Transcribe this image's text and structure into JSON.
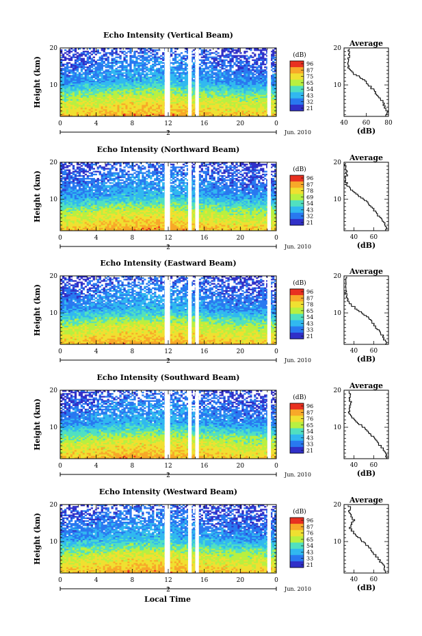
{
  "chart_data": [
    {
      "type": "heatmap",
      "title": "Echo Intensity (Vertical Beam)",
      "ylabel": "Height (km)",
      "ylim": [
        1.5,
        20
      ],
      "y_ticks": [
        "20",
        "10"
      ],
      "x_ticks": [
        "0",
        "4",
        "8",
        "12",
        "16",
        "20",
        "0"
      ],
      "xlim": [
        0,
        24
      ],
      "date_marker": "2",
      "date_label": "Jun. 2010",
      "colorbar": {
        "unit": "(dB)",
        "ticks": [
          "96",
          "87",
          "75",
          "65",
          "54",
          "43",
          "32",
          "21"
        ]
      },
      "gaps_hours": [
        [
          11.6,
          12.2
        ],
        [
          14.2,
          14.6
        ],
        [
          15.0,
          15.4
        ],
        [
          23.0,
          23.4
        ]
      ],
      "average_profile": {
        "title": "Average",
        "xlabel": "(dB)",
        "x_ticks": [
          "40",
          "60",
          "80"
        ],
        "xlim": [
          40,
          80
        ],
        "y_ticks": [
          "20",
          "10"
        ],
        "heights_km": [
          2,
          3,
          4,
          5,
          6,
          7,
          8,
          9,
          10,
          11,
          12,
          13,
          14,
          15,
          16,
          17,
          18,
          19,
          20
        ],
        "values_db": [
          78,
          79,
          77,
          76,
          74,
          71,
          68,
          66,
          63,
          60,
          55,
          50,
          46,
          44,
          43,
          44,
          45,
          44,
          44
        ]
      }
    },
    {
      "type": "heatmap",
      "title": "Echo Intensity (Northward Beam)",
      "ylabel": "Height (km)",
      "ylim": [
        1.5,
        20
      ],
      "y_ticks": [
        "20",
        "10"
      ],
      "x_ticks": [
        "0",
        "4",
        "8",
        "12",
        "16",
        "20",
        "0"
      ],
      "xlim": [
        0,
        24
      ],
      "date_marker": "2",
      "date_label": "Jun. 2010",
      "colorbar": {
        "unit": "(dB)",
        "ticks": [
          "96",
          "87",
          "78",
          "69",
          "54",
          "43",
          "32",
          "21"
        ]
      },
      "gaps_hours": [
        [
          11.6,
          12.2
        ],
        [
          14.2,
          14.6
        ],
        [
          15.0,
          15.4
        ],
        [
          23.0,
          23.4
        ]
      ],
      "average_profile": {
        "title": "Average",
        "xlabel": "(dB)",
        "x_ticks": [
          "40",
          "60"
        ],
        "xlim": [
          30,
          75
        ],
        "y_ticks": [
          "20",
          "10"
        ],
        "heights_km": [
          2,
          3,
          4,
          5,
          6,
          7,
          8,
          9,
          10,
          11,
          12,
          13,
          14,
          15,
          16,
          17,
          18,
          19,
          20
        ],
        "values_db": [
          73,
          72,
          70,
          67,
          64,
          61,
          58,
          55,
          50,
          45,
          40,
          36,
          33,
          32,
          32,
          33,
          32,
          31,
          32
        ]
      }
    },
    {
      "type": "heatmap",
      "title": "Echo Intensity (Eastward Beam)",
      "ylabel": "Height (km)",
      "ylim": [
        1.5,
        20
      ],
      "y_ticks": [
        "20",
        "10"
      ],
      "x_ticks": [
        "0",
        "4",
        "8",
        "12",
        "16",
        "20",
        "0"
      ],
      "xlim": [
        0,
        24
      ],
      "date_marker": "2",
      "date_label": "Jun. 2010",
      "colorbar": {
        "unit": "(dB)",
        "ticks": [
          "96",
          "87",
          "78",
          "65",
          "54",
          "43",
          "33",
          "21"
        ]
      },
      "gaps_hours": [
        [
          11.6,
          12.2
        ],
        [
          14.2,
          14.6
        ],
        [
          15.0,
          15.4
        ],
        [
          23.0,
          23.4
        ]
      ],
      "average_profile": {
        "title": "Average",
        "xlabel": "(dB)",
        "x_ticks": [
          "40",
          "60"
        ],
        "xlim": [
          30,
          75
        ],
        "y_ticks": [
          "20",
          "10"
        ],
        "heights_km": [
          2,
          3,
          4,
          5,
          6,
          7,
          8,
          9,
          10,
          11,
          12,
          13,
          14,
          15,
          16,
          17,
          18,
          19,
          20
        ],
        "values_db": [
          72,
          71,
          69,
          66,
          63,
          60,
          57,
          54,
          49,
          44,
          39,
          35,
          33,
          32,
          32,
          33,
          32,
          31,
          32
        ]
      }
    },
    {
      "type": "heatmap",
      "title": "Echo Intensity (Southward Beam)",
      "ylabel": "Height (km)",
      "ylim": [
        1.5,
        20
      ],
      "y_ticks": [
        "20",
        "10"
      ],
      "x_ticks": [
        "0",
        "4",
        "8",
        "12",
        "16",
        "20",
        "0"
      ],
      "xlim": [
        0,
        24
      ],
      "date_marker": "2",
      "date_label": "Jun. 2010",
      "colorbar": {
        "unit": "(dB)",
        "ticks": [
          "96",
          "87",
          "76",
          "65",
          "54",
          "43",
          "33",
          "21"
        ]
      },
      "gaps_hours": [
        [
          11.6,
          12.2
        ],
        [
          14.2,
          14.6
        ],
        [
          15.0,
          15.4
        ],
        [
          23.0,
          23.4
        ]
      ],
      "average_profile": {
        "title": "Average",
        "xlabel": "(dB)",
        "x_ticks": [
          "40",
          "60"
        ],
        "xlim": [
          30,
          75
        ],
        "y_ticks": [
          "20",
          "10"
        ],
        "heights_km": [
          2,
          3,
          4,
          5,
          6,
          7,
          8,
          9,
          10,
          11,
          12,
          13,
          14,
          15,
          16,
          17,
          18,
          19,
          20
        ],
        "values_db": [
          73,
          72,
          70,
          67,
          64,
          61,
          58,
          55,
          50,
          46,
          42,
          38,
          35,
          35,
          36,
          37,
          35,
          36,
          35
        ]
      }
    },
    {
      "type": "heatmap",
      "title": "Echo Intensity (Westward Beam)",
      "ylabel": "Height (km)",
      "ylim": [
        1.5,
        20
      ],
      "y_ticks": [
        "20",
        "10"
      ],
      "x_ticks": [
        "0",
        "4",
        "8",
        "12",
        "16",
        "20",
        "0"
      ],
      "xlim": [
        0,
        24
      ],
      "date_marker": "2",
      "date_label": "Jun. 2010",
      "colorbar": {
        "unit": "(dB)",
        "ticks": [
          "96",
          "87",
          "76",
          "65",
          "54",
          "43",
          "33",
          "21"
        ]
      },
      "gaps_hours": [
        [
          11.6,
          12.2
        ],
        [
          14.2,
          14.6
        ],
        [
          15.0,
          15.4
        ],
        [
          23.0,
          23.4
        ]
      ],
      "average_profile": {
        "title": "Average",
        "xlabel": "(dB)",
        "x_ticks": [
          "40",
          "60"
        ],
        "xlim": [
          30,
          75
        ],
        "y_ticks": [
          "20",
          "10"
        ],
        "heights_km": [
          2,
          3,
          4,
          5,
          6,
          7,
          8,
          9,
          10,
          11,
          12,
          13,
          14,
          15,
          16,
          17,
          18,
          19,
          20
        ],
        "values_db": [
          72,
          71,
          69,
          66,
          63,
          60,
          57,
          54,
          50,
          46,
          42,
          38,
          36,
          38,
          40,
          37,
          35,
          36,
          35
        ]
      }
    }
  ],
  "footer": {
    "xlabel": "Local Time"
  },
  "colors": {
    "scale": [
      "#3030c8",
      "#2878f0",
      "#30b8f0",
      "#50e0c0",
      "#b8f040",
      "#f0e030",
      "#f8a828",
      "#e83020"
    ]
  }
}
